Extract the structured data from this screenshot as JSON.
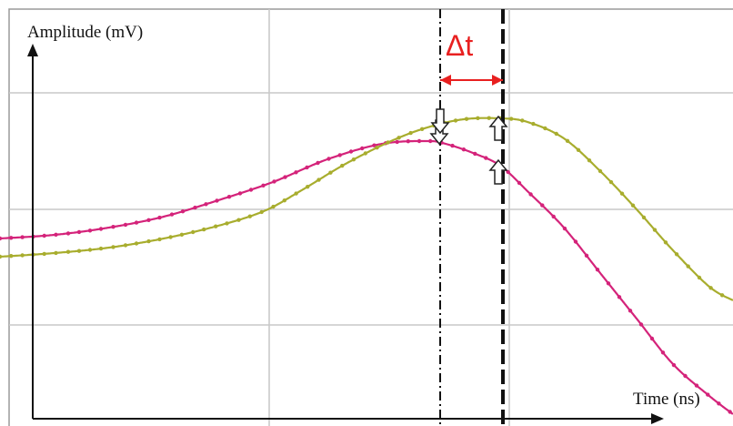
{
  "chart_data": {
    "type": "line",
    "ylabel": "Amplitude (mV)",
    "xlabel": "Time (ns)",
    "annotation": "Δt",
    "grid": true,
    "xlim": [
      0,
      806
    ],
    "ylim": [
      -240,
      220
    ],
    "series": [
      {
        "color": "#d4237a",
        "x": [
          0,
          60,
          120,
          180,
          240,
          300,
          360,
          420,
          470,
          490,
          520,
          550,
          580,
          620,
          660,
          700,
          740,
          780,
          806
        ],
        "y": [
          -32,
          -28,
          -20,
          -8,
          10,
          30,
          55,
          72,
          75,
          72,
          62,
          48,
          20,
          -20,
          -70,
          -120,
          -170,
          -205,
          -225
        ]
      },
      {
        "color": "#a8ad2e",
        "x": [
          0,
          60,
          120,
          180,
          240,
          290,
          330,
          380,
          430,
          470,
          510,
          550,
          580,
          620,
          660,
          700,
          740,
          780,
          806
        ],
        "y": [
          -52,
          -48,
          -42,
          -32,
          -18,
          -2,
          20,
          50,
          75,
          90,
          99,
          100,
          96,
          78,
          42,
          0,
          -45,
          -85,
          -100
        ]
      }
    ],
    "colors": {
      "grid": "#c9c9c9",
      "axis": "#111111",
      "delta": "#e82020",
      "marker_line": "#111111"
    }
  }
}
